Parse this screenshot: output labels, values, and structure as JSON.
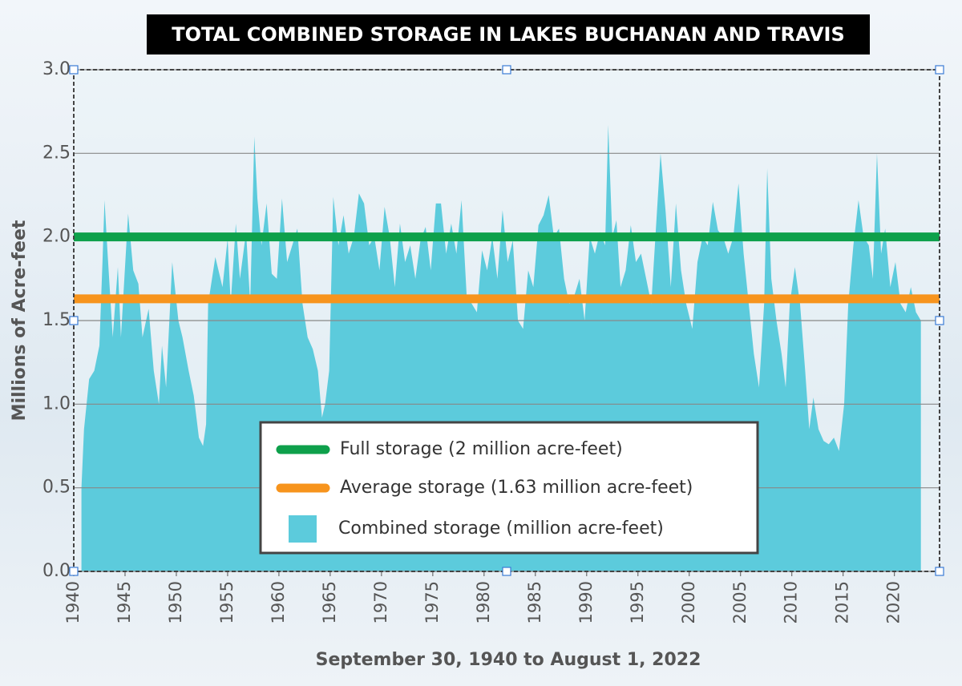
{
  "chart_data": {
    "type": "area",
    "title": "TOTAL COMBINED STORAGE IN LAKES BUCHANAN AND TRAVIS",
    "x_label": "September 30, 1940 to August 1, 2022",
    "y_label": "Millions of Acre-feet",
    "xlim": [
      1940,
      2024.4
    ],
    "ylim": [
      0,
      3
    ],
    "xticks": [
      1940,
      1945,
      1950,
      1955,
      1960,
      1965,
      1970,
      1975,
      1980,
      1985,
      1990,
      1995,
      2000,
      2005,
      2010,
      2015,
      2020
    ],
    "yticks": [
      {
        "value": 0,
        "label": "0.0"
      },
      0.5,
      {
        "value": 1,
        "label": "1.0"
      },
      1.5,
      {
        "value": 2,
        "label": "2.0"
      },
      2.5,
      {
        "value": 3,
        "label": "3.0"
      }
    ],
    "grid": true,
    "series": [
      {
        "name": "Combined storage (million acre-feet)",
        "color": "#5ccbdc",
        "x": [
          1940.75,
          1941,
          1941.5,
          1942,
          1942.5,
          1942.8,
          1943,
          1943.3,
          1943.8,
          1944.3,
          1944.6,
          1945.3,
          1945.8,
          1946.3,
          1946.7,
          1947.3,
          1947.8,
          1948.3,
          1948.6,
          1949,
          1949.6,
          1950.2,
          1950.6,
          1951.2,
          1951.7,
          1952.2,
          1952.6,
          1952.9,
          1953.1,
          1953.8,
          1954.5,
          1955,
          1955.3,
          1955.8,
          1956.2,
          1956.8,
          1957.2,
          1957.6,
          1957.9,
          1958.3,
          1958.8,
          1959.3,
          1959.8,
          1960.3,
          1960.8,
          1961.3,
          1961.8,
          1962.3,
          1962.8,
          1963.3,
          1963.8,
          1964.2,
          1964.5,
          1964.9,
          1965.3,
          1965.8,
          1966.3,
          1966.8,
          1967.3,
          1967.8,
          1968.3,
          1968.8,
          1969.3,
          1969.8,
          1970.3,
          1970.8,
          1971.3,
          1971.8,
          1972.3,
          1972.8,
          1973.3,
          1973.8,
          1974.3,
          1974.8,
          1975.3,
          1975.8,
          1976.3,
          1976.8,
          1977.3,
          1977.8,
          1978.3,
          1978.8,
          1979.3,
          1979.8,
          1980.3,
          1980.8,
          1981.3,
          1981.8,
          1982.3,
          1982.8,
          1983.3,
          1983.8,
          1984.3,
          1984.8,
          1985.3,
          1985.8,
          1986.3,
          1986.8,
          1987.3,
          1987.8,
          1988.3,
          1988.8,
          1989.3,
          1989.8,
          1990.3,
          1990.8,
          1991.3,
          1991.8,
          1992.1,
          1992.5,
          1992.9,
          1993.3,
          1993.8,
          1994.3,
          1994.8,
          1995.3,
          1995.8,
          1996.3,
          1996.8,
          1997.2,
          1997.7,
          1998.2,
          1998.7,
          1999.2,
          1999.7,
          2000.3,
          2000.8,
          2001.3,
          2001.8,
          2002.3,
          2002.8,
          2003.3,
          2003.8,
          2004.3,
          2004.8,
          2005.3,
          2005.8,
          2006.3,
          2006.8,
          2007.3,
          2007.6,
          2008,
          2008.5,
          2009,
          2009.4,
          2009.8,
          2010.3,
          2010.8,
          2011.3,
          2011.7,
          2012.1,
          2012.6,
          2013.1,
          2013.6,
          2014.1,
          2014.6,
          2015.1,
          2015.5,
          2016,
          2016.5,
          2017,
          2017.5,
          2017.9,
          2018.3,
          2018.7,
          2019.1,
          2019.6,
          2020.1,
          2020.6,
          2021.1,
          2021.6,
          2022.1,
          2022.58
        ],
        "values": [
          0.5,
          0.85,
          1.15,
          1.2,
          1.35,
          1.85,
          2.22,
          1.9,
          1.4,
          1.82,
          1.4,
          2.14,
          1.8,
          1.72,
          1.4,
          1.57,
          1.2,
          1.0,
          1.35,
          1.1,
          1.85,
          1.5,
          1.4,
          1.2,
          1.05,
          0.8,
          0.75,
          0.88,
          1.6,
          1.88,
          1.7,
          1.99,
          1.6,
          2.08,
          1.75,
          2.03,
          1.6,
          2.6,
          2.23,
          1.95,
          2.2,
          1.78,
          1.75,
          2.23,
          1.85,
          1.95,
          2.05,
          1.6,
          1.4,
          1.33,
          1.2,
          0.92,
          1.0,
          1.2,
          2.24,
          1.95,
          2.13,
          1.9,
          2.0,
          2.26,
          2.2,
          1.95,
          2.0,
          1.8,
          2.18,
          2.0,
          1.7,
          2.08,
          1.85,
          1.95,
          1.75,
          1.98,
          2.06,
          1.8,
          2.2,
          2.2,
          1.9,
          2.08,
          1.9,
          2.22,
          1.65,
          1.6,
          1.55,
          1.92,
          1.8,
          2.0,
          1.75,
          2.16,
          1.85,
          1.98,
          1.5,
          1.45,
          1.8,
          1.7,
          2.07,
          2.13,
          2.25,
          2.0,
          2.05,
          1.75,
          1.6,
          1.65,
          1.75,
          1.5,
          2.0,
          1.9,
          2.03,
          1.95,
          2.67,
          2.0,
          2.1,
          1.7,
          1.8,
          2.07,
          1.85,
          1.9,
          1.75,
          1.6,
          2.1,
          2.5,
          2.15,
          1.7,
          2.2,
          1.8,
          1.6,
          1.45,
          1.85,
          2.0,
          1.95,
          2.21,
          2.04,
          2.0,
          1.9,
          2.0,
          2.32,
          1.9,
          1.6,
          1.3,
          1.1,
          1.6,
          2.41,
          1.75,
          1.5,
          1.3,
          1.1,
          1.6,
          1.82,
          1.6,
          1.2,
          0.85,
          1.04,
          0.85,
          0.78,
          0.76,
          0.8,
          0.72,
          1.0,
          1.6,
          1.95,
          2.22,
          2.0,
          1.95,
          1.75,
          2.5,
          1.9,
          2.05,
          1.7,
          1.85,
          1.6,
          1.55,
          1.7,
          1.55,
          1.5
        ]
      }
    ],
    "reference_lines": [
      {
        "name": "Full storage (2 million acre-feet)",
        "value": 2,
        "color": "#0ea04b"
      },
      {
        "name": "Average storage (1.63 million acre-feet)",
        "value": 1.63,
        "color": "#f7941d"
      }
    ]
  }
}
